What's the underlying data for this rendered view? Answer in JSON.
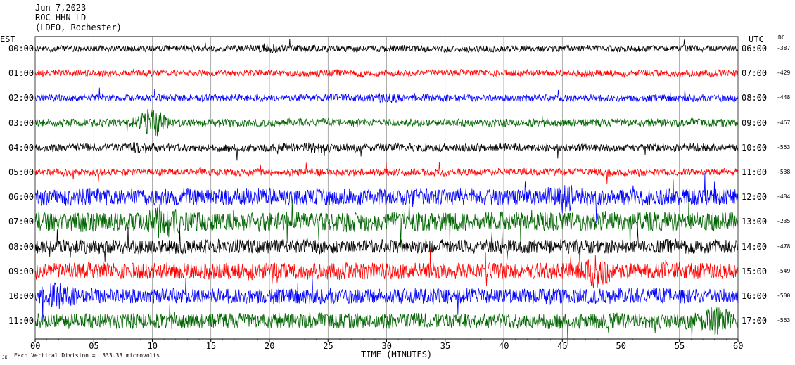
{
  "header": {
    "date": "Jun 7,2023",
    "station": "ROC HHN LD --",
    "network": "(LDEO, Rochester)"
  },
  "left_axis_label": "EST",
  "right_axis_label": "UTC",
  "dc_label": "DC",
  "xlabel": "TIME (MINUTES)",
  "footer_note": "Each Vertical Division =  333.33 microvolts",
  "footer_mark": "JK",
  "chart_data": {
    "type": "line",
    "title": "",
    "xlabel": "TIME (MINUTES)",
    "xlim": [
      0,
      60
    ],
    "x_ticks": [
      "00",
      "05",
      "10",
      "15",
      "20",
      "25",
      "30",
      "35",
      "40",
      "45",
      "50",
      "55",
      "60"
    ],
    "vertical_division_microvolts": 333.33,
    "grid": true,
    "traces": [
      {
        "est": "00:00",
        "utc": "06:00",
        "dc": "-387",
        "color": "#000000",
        "amplitude": 1.0,
        "events": [
          {
            "t": 20,
            "a": 1.6
          }
        ]
      },
      {
        "est": "01:00",
        "utc": "07:00",
        "dc": "-429",
        "color": "#ff0000",
        "amplitude": 1.0,
        "events": []
      },
      {
        "est": "02:00",
        "utc": "08:00",
        "dc": "-448",
        "color": "#0000ff",
        "amplitude": 1.1,
        "events": [
          {
            "t": 30,
            "a": 1.5
          }
        ]
      },
      {
        "est": "03:00",
        "utc": "09:00",
        "dc": "-467",
        "color": "#006400",
        "amplitude": 1.2,
        "events": [
          {
            "t": 10,
            "a": 4.0
          }
        ]
      },
      {
        "est": "04:00",
        "utc": "10:00",
        "dc": "-553",
        "color": "#000000",
        "amplitude": 1.2,
        "events": [
          {
            "t": 9,
            "a": 1.6
          },
          {
            "t": 24,
            "a": 1.5
          }
        ]
      },
      {
        "est": "05:00",
        "utc": "11:00",
        "dc": "-538",
        "color": "#ff0000",
        "amplitude": 1.1,
        "events": []
      },
      {
        "est": "06:00",
        "utc": "12:00",
        "dc": "-484",
        "color": "#0000ff",
        "amplitude": 2.6,
        "events": [
          {
            "t": 45,
            "a": 2.0
          }
        ]
      },
      {
        "est": "07:00",
        "utc": "13:00",
        "dc": "-235",
        "color": "#006400",
        "amplitude": 3.0,
        "events": [
          {
            "t": 11,
            "a": 2.0
          }
        ]
      },
      {
        "est": "08:00",
        "utc": "14:00",
        "dc": "-478",
        "color": "#000000",
        "amplitude": 2.2,
        "events": []
      },
      {
        "est": "09:00",
        "utc": "15:00",
        "dc": "-549",
        "color": "#ff0000",
        "amplitude": 2.6,
        "events": [
          {
            "t": 48,
            "a": 2.2
          }
        ]
      },
      {
        "est": "10:00",
        "utc": "16:00",
        "dc": "-500",
        "color": "#0000ff",
        "amplitude": 2.4,
        "events": [
          {
            "t": 2,
            "a": 1.8
          }
        ]
      },
      {
        "est": "11:00",
        "utc": "17:00",
        "dc": "-563",
        "color": "#006400",
        "amplitude": 2.4,
        "events": [
          {
            "t": 58,
            "a": 2.0
          }
        ]
      }
    ]
  }
}
